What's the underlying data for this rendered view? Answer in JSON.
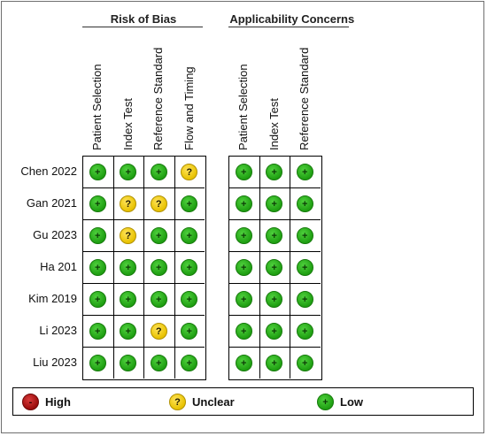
{
  "chart_data": {
    "type": "table",
    "groups": [
      {
        "title": "Risk of Bias",
        "columns": [
          "Patient Selection",
          "Index Test",
          "Reference Standard",
          "Flow and Timing"
        ]
      },
      {
        "title": "Applicability Concerns",
        "columns": [
          "Patient Selection",
          "Index Test",
          "Reference Standard"
        ]
      }
    ],
    "studies": [
      "Chen 2022",
      "Gan 2021",
      "Gu 2023",
      "Ha 201",
      "Kim 2019",
      "Li 2023",
      "Liu 2023"
    ],
    "risk_of_bias": [
      [
        "low",
        "low",
        "low",
        "unclear"
      ],
      [
        "low",
        "unclear",
        "unclear",
        "low"
      ],
      [
        "low",
        "unclear",
        "low",
        "low"
      ],
      [
        "low",
        "low",
        "low",
        "low"
      ],
      [
        "low",
        "low",
        "low",
        "low"
      ],
      [
        "low",
        "low",
        "unclear",
        "low"
      ],
      [
        "low",
        "low",
        "low",
        "low"
      ]
    ],
    "applicability_concerns": [
      [
        "low",
        "low",
        "low"
      ],
      [
        "low",
        "low",
        "low"
      ],
      [
        "low",
        "low",
        "low"
      ],
      [
        "low",
        "low",
        "low"
      ],
      [
        "low",
        "low",
        "low"
      ],
      [
        "low",
        "low",
        "low"
      ],
      [
        "low",
        "low",
        "low"
      ]
    ],
    "symbols": {
      "low": "+",
      "unclear": "?",
      "high": "-"
    },
    "legend": [
      {
        "key": "high",
        "label": "High"
      },
      {
        "key": "unclear",
        "label": "Unclear"
      },
      {
        "key": "low",
        "label": "Low"
      }
    ],
    "colors": {
      "low": "#2ea51f",
      "unclear": "#f2d21c",
      "high": "#b31717"
    }
  }
}
